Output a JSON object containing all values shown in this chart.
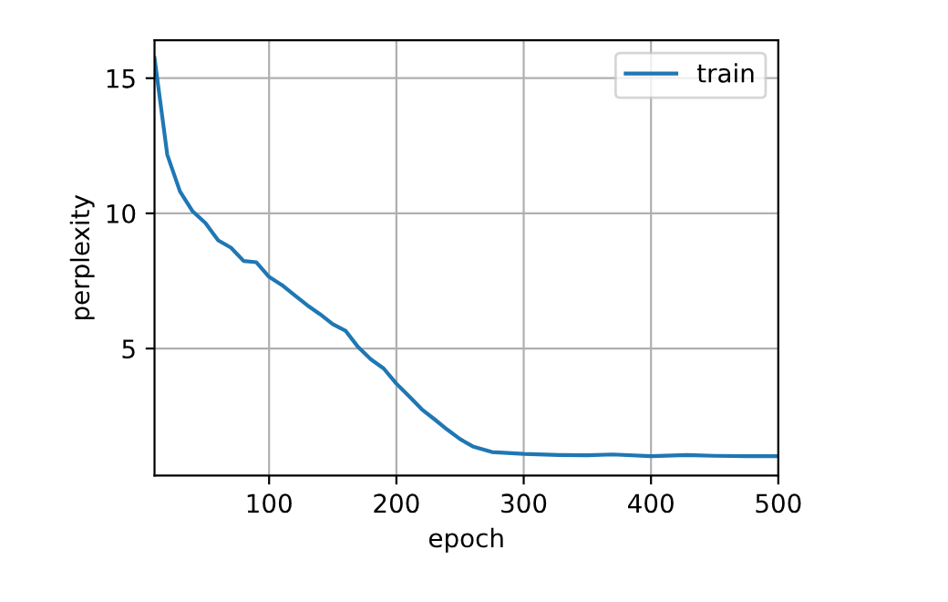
{
  "chart_data": {
    "type": "line",
    "xlabel": "epoch",
    "ylabel": "perplexity",
    "xlim": [
      10,
      500
    ],
    "xticks": [
      100,
      200,
      300,
      400,
      500
    ],
    "ylim": [
      0.3,
      16.4
    ],
    "yticks": [
      5,
      10,
      15
    ],
    "grid": true,
    "legend": "top right",
    "series": [
      {
        "name": "train",
        "color": "#1f77b4",
        "x": [
          10,
          20,
          30,
          40,
          50,
          60,
          70,
          80,
          90,
          100,
          110,
          120,
          130,
          140,
          150,
          160,
          170,
          180,
          190,
          200,
          210,
          220,
          230,
          240,
          250,
          260,
          265,
          275,
          300,
          328,
          350,
          370,
          400,
          428,
          450,
          475,
          500
        ],
        "values": [
          15.75,
          12.17,
          10.81,
          10.07,
          9.64,
          9.0,
          8.73,
          8.24,
          8.19,
          7.65,
          7.35,
          6.97,
          6.6,
          6.27,
          5.9,
          5.66,
          5.05,
          4.6,
          4.26,
          3.7,
          3.23,
          2.75,
          2.38,
          2.0,
          1.65,
          1.38,
          1.31,
          1.17,
          1.1,
          1.06,
          1.05,
          1.08,
          1.02,
          1.06,
          1.03,
          1.02,
          1.02
        ]
      }
    ]
  }
}
